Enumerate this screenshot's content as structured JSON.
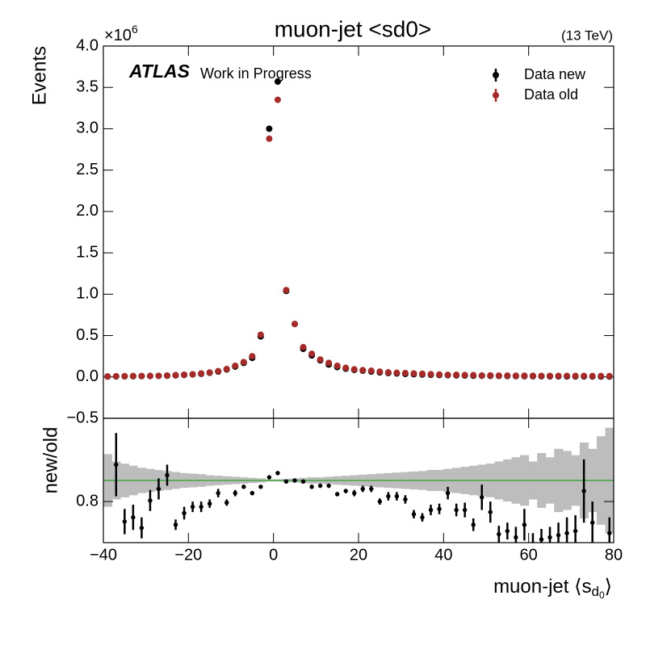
{
  "chart_data": [
    {
      "type": "scatter",
      "title": "muon-jet <sd0>",
      "energy_label": "(13 TeV)",
      "offset_label": "×10",
      "offset_exponent": "6",
      "atlas_label": "ATLAS",
      "atlas_status": "Work in Progress",
      "ylabel": "Events",
      "legend": "upper right",
      "xlim": [
        -40,
        80
      ],
      "ylim": [
        -0.5,
        4.0
      ],
      "yticks": [
        {
          "value": -0.5,
          "label": "−0.5"
        },
        {
          "value": 0,
          "label": "0.0"
        },
        0.5,
        {
          "value": 1,
          "label": "1.0"
        },
        1.5,
        {
          "value": 2,
          "label": "2.0"
        },
        2.5,
        {
          "value": 3,
          "label": "3.0"
        },
        3.5,
        {
          "value": 4,
          "label": "4.0"
        }
      ],
      "x": [
        -39,
        -37,
        -35,
        -33,
        -31,
        -29,
        -27,
        -25,
        -23,
        -21,
        -19,
        -17,
        -15,
        -13,
        -11,
        -9,
        -7,
        -5,
        -3,
        -1,
        1,
        3,
        5,
        7,
        9,
        11,
        13,
        15,
        17,
        19,
        21,
        23,
        25,
        27,
        29,
        31,
        33,
        35,
        37,
        39,
        41,
        43,
        45,
        47,
        49,
        51,
        53,
        55,
        57,
        59,
        61,
        63,
        65,
        67,
        69,
        71,
        73,
        75,
        77,
        79
      ],
      "series": [
        {
          "name": "Data new",
          "color": "#000000",
          "values": [
            0.005,
            0.006,
            0.007,
            0.008,
            0.009,
            0.011,
            0.013,
            0.015,
            0.019,
            0.024,
            0.03,
            0.038,
            0.05,
            0.065,
            0.09,
            0.125,
            0.17,
            0.23,
            0.49,
            3.0,
            3.57,
            1.04,
            0.64,
            0.34,
            0.26,
            0.2,
            0.15,
            0.12,
            0.1,
            0.085,
            0.075,
            0.065,
            0.055,
            0.048,
            0.042,
            0.037,
            0.033,
            0.029,
            0.026,
            0.023,
            0.021,
            0.019,
            0.017,
            0.015,
            0.014,
            0.013,
            0.012,
            0.011,
            0.01,
            0.009,
            0.0085,
            0.008,
            0.0075,
            0.007,
            0.0065,
            0.006,
            0.0058,
            0.0055,
            0.0052,
            0.005
          ]
        },
        {
          "name": "Data old",
          "color": "#a52a2a",
          "values": [
            0.005,
            0.008,
            0.009,
            0.011,
            0.011,
            0.012,
            0.013,
            0.017,
            0.022,
            0.027,
            0.032,
            0.042,
            0.054,
            0.07,
            0.095,
            0.135,
            0.18,
            0.25,
            0.51,
            2.88,
            3.35,
            1.05,
            0.64,
            0.36,
            0.28,
            0.21,
            0.17,
            0.135,
            0.11,
            0.092,
            0.082,
            0.075,
            0.064,
            0.055,
            0.05,
            0.047,
            0.042,
            0.038,
            0.033,
            0.03,
            0.025,
            0.026,
            0.023,
            0.022,
            0.017,
            0.018,
            0.016,
            0.016,
            0.015,
            0.015,
            0.014,
            0.013,
            0.013,
            0.013,
            0.013,
            0.012,
            0.012,
            0.011,
            0.011,
            0.01
          ]
        }
      ]
    },
    {
      "type": "ratio",
      "ylabel": "new/old",
      "xlabel": "muon-jet ⟨s",
      "xlabel_sub": "d",
      "xlabel_subsub": "0",
      "xlabel_end": "⟩",
      "xlim": [
        -40,
        80
      ],
      "xticks": [
        {
          "value": -40,
          "label": "−40"
        },
        {
          "value": -20,
          "label": "−20"
        },
        0,
        20,
        40,
        60,
        80
      ],
      "ylim": [
        0.41,
        1.59
      ],
      "yticks": [
        0.8
      ],
      "reference_line": 1,
      "reference_color": "#2ca02c",
      "color": "#000000",
      "band_color": "#bdbdbd",
      "values": [
        null,
        1.15,
        0.61,
        0.65,
        0.55,
        0.81,
        0.92,
        1.05,
        0.58,
        0.69,
        0.75,
        0.75,
        0.78,
        0.88,
        0.79,
        0.88,
        0.94,
        0.88,
        0.94,
        1.03,
        1.07,
        0.99,
        1.0,
        0.99,
        0.94,
        0.95,
        0.95,
        0.87,
        0.9,
        0.88,
        0.92,
        0.92,
        0.8,
        0.85,
        0.85,
        0.82,
        0.68,
        0.65,
        0.72,
        0.73,
        0.88,
        0.72,
        0.72,
        0.58,
        0.84,
        0.7,
        0.49,
        0.52,
        0.46,
        0.58,
        0.4,
        0.44,
        0.46,
        0.48,
        0.5,
        0.52,
        0.9,
        0.6,
        null,
        0.5
      ],
      "errors": [
        null,
        0.3,
        0.12,
        0.12,
        0.1,
        0.1,
        0.1,
        0.1,
        0.05,
        0.06,
        0.05,
        0.05,
        0.04,
        0.04,
        0.03,
        0.03,
        0.02,
        0.02,
        0.01,
        0.005,
        0.005,
        0.01,
        0.01,
        0.01,
        0.02,
        0.02,
        0.02,
        0.02,
        0.02,
        0.03,
        0.03,
        0.03,
        0.03,
        0.04,
        0.04,
        0.04,
        0.04,
        0.04,
        0.05,
        0.05,
        0.06,
        0.06,
        0.07,
        0.06,
        0.12,
        0.1,
        0.08,
        0.08,
        0.1,
        0.15,
        0.1,
        0.1,
        0.1,
        0.12,
        0.15,
        0.15,
        0.3,
        0.2,
        null,
        0.15
      ],
      "band": [
        0.25,
        0.18,
        0.16,
        0.14,
        0.12,
        0.11,
        0.1,
        0.09,
        0.08,
        0.07,
        0.065,
        0.06,
        0.05,
        0.045,
        0.04,
        0.035,
        0.03,
        0.025,
        0.02,
        0.01,
        0.01,
        0.015,
        0.02,
        0.025,
        0.03,
        0.03,
        0.035,
        0.04,
        0.045,
        0.05,
        0.055,
        0.06,
        0.065,
        0.07,
        0.075,
        0.08,
        0.085,
        0.09,
        0.1,
        0.1,
        0.11,
        0.12,
        0.13,
        0.14,
        0.15,
        0.16,
        0.18,
        0.2,
        0.22,
        0.24,
        0.18,
        0.26,
        0.22,
        0.3,
        0.28,
        0.24,
        0.36,
        0.3,
        0.42,
        0.5
      ]
    }
  ]
}
